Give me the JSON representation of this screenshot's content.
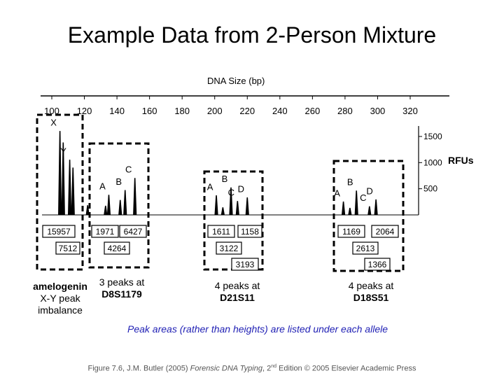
{
  "title": "Example Data from 2-Person Mixture",
  "x_axis_label": "DNA Size (bp)",
  "y_axis_label": "RFUs",
  "chart_data": {
    "type": "line",
    "title": "Example Data from 2-Person Mixture",
    "xlabel": "DNA Size (bp)",
    "ylabel": "RFUs",
    "x_ticks": [
      100,
      120,
      140,
      160,
      180,
      200,
      220,
      240,
      260,
      280,
      300,
      320
    ],
    "y_ticks": [
      500,
      1000,
      1500
    ],
    "xlim": [
      97,
      325
    ],
    "ylim": [
      0,
      1700
    ],
    "peaks": [
      {
        "size": 105,
        "height": 1600,
        "label": "X",
        "area": ""
      },
      {
        "size": 107,
        "height": 1380,
        "label": "",
        "area": ""
      },
      {
        "size": 111,
        "height": 1050,
        "label": "Y",
        "area": ""
      },
      {
        "size": 113,
        "height": 900,
        "label": "",
        "area": ""
      },
      {
        "size": 122,
        "height": 180,
        "label": "",
        "area": ""
      },
      {
        "size": 133,
        "height": 170,
        "label": "",
        "area": ""
      },
      {
        "size": 135,
        "height": 380,
        "label": "A",
        "area": ""
      },
      {
        "size": 142,
        "height": 280,
        "label": "",
        "area": ""
      },
      {
        "size": 145,
        "height": 470,
        "label": "B",
        "area": ""
      },
      {
        "size": 151,
        "height": 700,
        "label": "C",
        "area": ""
      },
      {
        "size": 201,
        "height": 370,
        "label": "A",
        "area": ""
      },
      {
        "size": 205,
        "height": 140,
        "label": "",
        "area": ""
      },
      {
        "size": 210,
        "height": 520,
        "label": "B",
        "area": ""
      },
      {
        "size": 214,
        "height": 260,
        "label": "C",
        "area": ""
      },
      {
        "size": 220,
        "height": 330,
        "label": "D",
        "area": ""
      },
      {
        "size": 279,
        "height": 250,
        "label": "A",
        "area": ""
      },
      {
        "size": 283,
        "height": 130,
        "label": "",
        "area": ""
      },
      {
        "size": 287,
        "height": 460,
        "label": "B",
        "area": ""
      },
      {
        "size": 295,
        "height": 160,
        "label": "C",
        "area": ""
      },
      {
        "size": 299,
        "height": 290,
        "label": "D",
        "area": ""
      }
    ]
  },
  "area_boxes": [
    {
      "text": "15957",
      "name": "area-box-x"
    },
    {
      "text": "7512",
      "name": "area-box-y"
    },
    {
      "text": "1971",
      "name": "area-box-d8-a"
    },
    {
      "text": "6427",
      "name": "area-box-d8-c"
    },
    {
      "text": "4264",
      "name": "area-box-d8-b"
    },
    {
      "text": "1611",
      "name": "area-box-d21-a"
    },
    {
      "text": "1158",
      "name": "area-box-d21-c"
    },
    {
      "text": "3122",
      "name": "area-box-d21-b"
    },
    {
      "text": "3193",
      "name": "area-box-d21-d"
    },
    {
      "text": "1169",
      "name": "area-box-d18-a"
    },
    {
      "text": "2064",
      "name": "area-box-d18-d"
    },
    {
      "text": "2613",
      "name": "area-box-d18-b"
    },
    {
      "text": "1366",
      "name": "area-box-d18-c"
    }
  ],
  "locus_labels": {
    "amelogenin": {
      "line1": "amelogenin",
      "line2": "X-Y peak",
      "line3": "imbalance"
    },
    "d8": {
      "line1": "3 peaks at",
      "line2": "D8S1179"
    },
    "d21": {
      "line1": "4 peaks at",
      "line2": "D21S11"
    },
    "d18": {
      "line1": "4 peaks at",
      "line2": "D18S51"
    }
  },
  "peak_note": "Peak areas (rather than heights) are listed under each allele",
  "caption": {
    "prefix": "Figure 7.6, J.M. Butler (2005) ",
    "book": "Forensic DNA Typing",
    "mid": ", 2",
    "sup": "nd",
    "suffix": " Edition © 2005 Elsevier Academic Press"
  },
  "colors": {
    "note": "#1f1fb4",
    "trace": "#000000",
    "box_border": "#000000"
  }
}
